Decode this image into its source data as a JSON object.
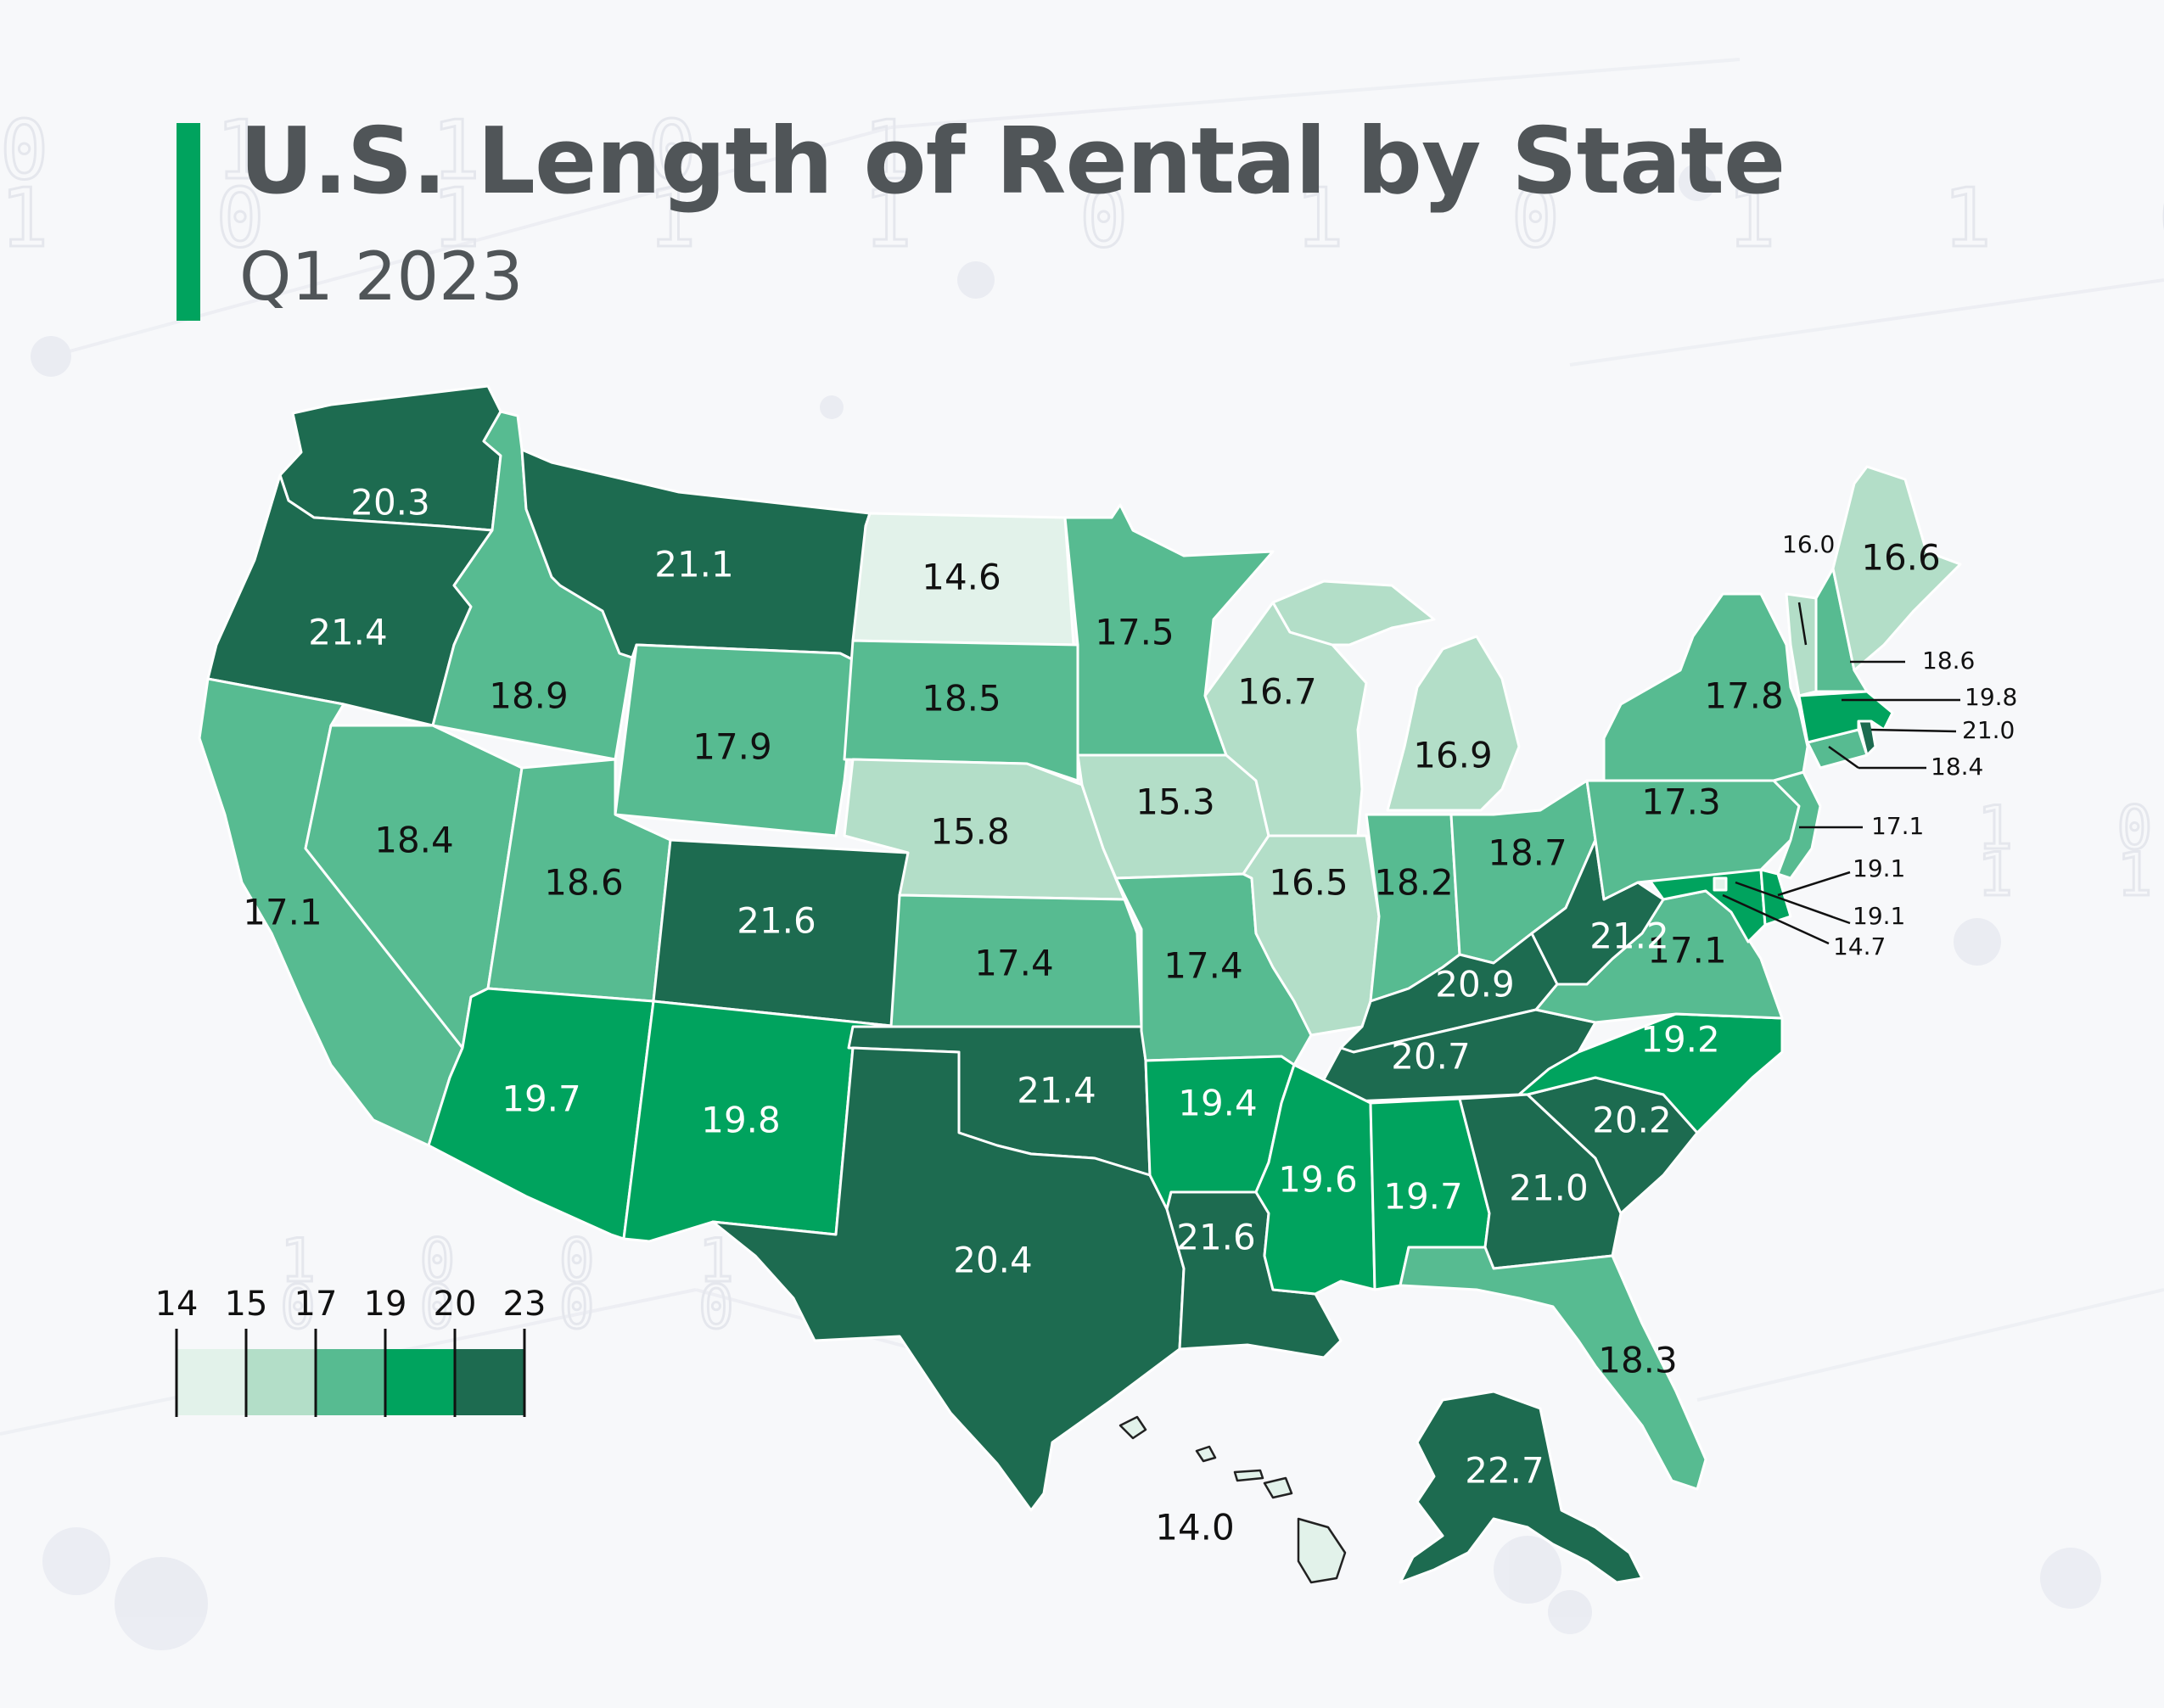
{
  "header": {
    "title": "U.S. Length of Rental by State",
    "subtitle": "Q1 2023",
    "accent_color": "#00a35e"
  },
  "legend": {
    "ticks": [
      "14",
      "15",
      "17",
      "19",
      "20",
      "23"
    ],
    "colors": [
      "#e2f2ea",
      "#b3dec8",
      "#57bb91",
      "#00a35e",
      "#1d6b50"
    ]
  },
  "chart_data": {
    "type": "choropleth",
    "metric": "Length of Rental",
    "period": "Q1 2023",
    "bins": [
      14,
      15,
      17,
      19,
      20,
      23
    ],
    "states": [
      {
        "state": "WA",
        "value": 20.3
      },
      {
        "state": "OR",
        "value": 21.4
      },
      {
        "state": "CA",
        "value": 17.1
      },
      {
        "state": "ID",
        "value": 18.9
      },
      {
        "state": "NV",
        "value": 18.4
      },
      {
        "state": "MT",
        "value": 21.1
      },
      {
        "state": "WY",
        "value": 17.9
      },
      {
        "state": "UT",
        "value": 18.6
      },
      {
        "state": "AZ",
        "value": 19.7
      },
      {
        "state": "CO",
        "value": 21.6
      },
      {
        "state": "NM",
        "value": 19.8
      },
      {
        "state": "ND",
        "value": 14.6
      },
      {
        "state": "SD",
        "value": 18.5
      },
      {
        "state": "NE",
        "value": 15.8
      },
      {
        "state": "KS",
        "value": 17.4
      },
      {
        "state": "OK",
        "value": 21.4
      },
      {
        "state": "TX",
        "value": 20.4
      },
      {
        "state": "MN",
        "value": 17.5
      },
      {
        "state": "IA",
        "value": 15.3
      },
      {
        "state": "MO",
        "value": 17.4
      },
      {
        "state": "AR",
        "value": 19.4
      },
      {
        "state": "LA",
        "value": 21.6
      },
      {
        "state": "WI",
        "value": 16.7
      },
      {
        "state": "IL",
        "value": 16.5
      },
      {
        "state": "MI",
        "value": 16.9
      },
      {
        "state": "IN",
        "value": 18.2
      },
      {
        "state": "OH",
        "value": 18.7
      },
      {
        "state": "KY",
        "value": 20.9
      },
      {
        "state": "TN",
        "value": 20.7
      },
      {
        "state": "MS",
        "value": 19.6
      },
      {
        "state": "AL",
        "value": 19.7
      },
      {
        "state": "GA",
        "value": 21.0
      },
      {
        "state": "FL",
        "value": 18.3
      },
      {
        "state": "SC",
        "value": 20.2
      },
      {
        "state": "NC",
        "value": 19.2
      },
      {
        "state": "VA",
        "value": 17.1
      },
      {
        "state": "WV",
        "value": 21.2
      },
      {
        "state": "PA",
        "value": 17.3
      },
      {
        "state": "NY",
        "value": 17.8
      },
      {
        "state": "VT",
        "value": 16.0
      },
      {
        "state": "NH",
        "value": 18.6
      },
      {
        "state": "ME",
        "value": 16.6
      },
      {
        "state": "MA",
        "value": 19.8
      },
      {
        "state": "RI",
        "value": 21.0
      },
      {
        "state": "CT",
        "value": 18.4
      },
      {
        "state": "NJ",
        "value": 17.1
      },
      {
        "state": "DE",
        "value": 19.1
      },
      {
        "state": "MD",
        "value": 19.1
      },
      {
        "state": "DC",
        "value": 14.7
      },
      {
        "state": "AK",
        "value": 22.7
      },
      {
        "state": "HI",
        "value": 14.0
      }
    ]
  }
}
